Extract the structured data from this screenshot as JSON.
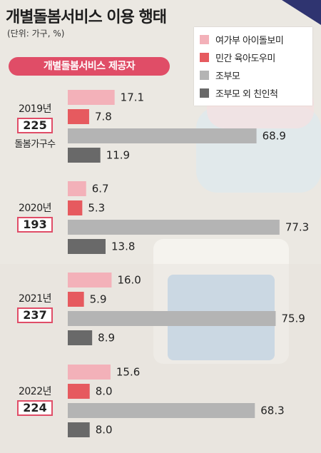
{
  "title": "개별돌봄서비스 이용 행태",
  "unit": "(단위: 가구, %)",
  "section_label": "개별돌봄서비스 제공자",
  "count_caption": "돌봄가구수",
  "colors": {
    "pink_light": "#f3b1b9",
    "red": "#e65a5f",
    "gray_light": "#b4b4b4",
    "gray_dark": "#696969",
    "accent": "#e04d67"
  },
  "legend": [
    {
      "label": "여가부 아이돌보미",
      "color": "#f3b1b9"
    },
    {
      "label": "민간 육아도우미",
      "color": "#e65a5f"
    },
    {
      "label": "조부모",
      "color": "#b4b4b4"
    },
    {
      "label": "조부모 외 친인척",
      "color": "#696969"
    }
  ],
  "chart_data": {
    "type": "bar",
    "orientation": "horizontal",
    "title": "개별돌봄서비스 이용 행태",
    "categories": [
      "2019년",
      "2020년",
      "2021년",
      "2022년"
    ],
    "households": [
      225,
      193,
      237,
      224
    ],
    "series": [
      {
        "name": "여가부 아이돌보미",
        "values": [
          17.1,
          6.7,
          16.0,
          15.6
        ],
        "labels": [
          "17.1",
          "6.7",
          "16.0",
          "15.6"
        ]
      },
      {
        "name": "민간 육아도우미",
        "values": [
          7.8,
          5.3,
          5.9,
          8.0
        ],
        "labels": [
          "7.8",
          "5.3",
          "5.9",
          "8.0"
        ]
      },
      {
        "name": "조부모",
        "values": [
          68.9,
          77.3,
          75.9,
          68.3
        ],
        "labels": [
          "68.9",
          "77.3",
          "75.9",
          "68.3"
        ]
      },
      {
        "name": "조부모 외 친인척",
        "values": [
          11.9,
          13.8,
          8.9,
          8.0
        ],
        "labels": [
          "11.9",
          "13.8",
          "8.9",
          "8.0"
        ]
      }
    ],
    "xlim": [
      0,
      80
    ],
    "grid": false,
    "legend_position": "top-right"
  }
}
